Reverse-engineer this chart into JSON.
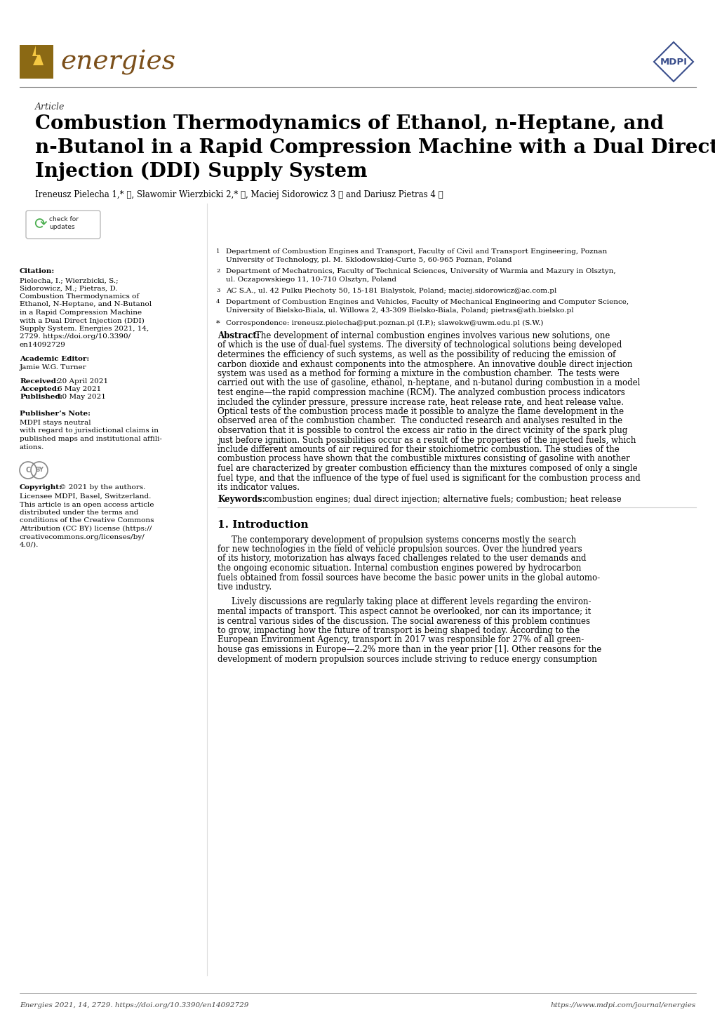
{
  "background_color": "#ffffff",
  "header_line_color": "#888888",
  "footer_line_color": "#888888",
  "logo_bg_color": "#8B6914",
  "logo_bolt_color": "#F5C842",
  "journal_name": "energies",
  "journal_name_color": "#7B4F1A",
  "mdpi_diamond_color": "#3A4E8C",
  "article_label": "Article",
  "title_line1": "Combustion Thermodynamics of Ethanol, n-Heptane, and",
  "title_line2": "n-Butanol in a Rapid Compression Machine with a Dual Direct",
  "title_line3": "Injection (DDI) Supply System",
  "authors": "Ireneusz Pielecha 1,* ⓘ, Sławomir Wierzbicki 2,* ⓘ, Maciej Sidorowicz 3 ⓘ and Dariusz Pietras 4 ⓘ",
  "abstract_bold": "Abstract:",
  "abstract_lines": [
    "The development of internal combustion engines involves various new solutions, one",
    "of which is the use of dual-fuel systems. The diversity of technological solutions being developed",
    "determines the efficiency of such systems, as well as the possibility of reducing the emission of",
    "carbon dioxide and exhaust components into the atmosphere. An innovative double direct injection",
    "system was used as a method for forming a mixture in the combustion chamber.  The tests were",
    "carried out with the use of gasoline, ethanol, n-heptane, and n-butanol during combustion in a model",
    "test engine—the rapid compression machine (RCM). The analyzed combustion process indicators",
    "included the cylinder pressure, pressure increase rate, heat release rate, and heat release value.",
    "Optical tests of the combustion process made it possible to analyze the flame development in the",
    "observed area of the combustion chamber.  The conducted research and analyses resulted in the",
    "observation that it is possible to control the excess air ratio in the direct vicinity of the spark plug",
    "just before ignition. Such possibilities occur as a result of the properties of the injected fuels, which",
    "include different amounts of air required for their stoichiometric combustion. The studies of the",
    "combustion process have shown that the combustible mixtures consisting of gasoline with another",
    "fuel are characterized by greater combustion efficiency than the mixtures composed of only a single",
    "fuel type, and that the influence of the type of fuel used is significant for the combustion process and",
    "its indicator values."
  ],
  "keywords_bold": "Keywords:",
  "keywords_text": " combustion engines; dual direct injection; alternative fuels; combustion; heat release",
  "section1_title": "1. Introduction",
  "p1_lines": [
    "The contemporary development of propulsion systems concerns mostly the search",
    "for new technologies in the field of vehicle propulsion sources. Over the hundred years",
    "of its history, motorization has always faced challenges related to the user demands and",
    "the ongoing economic situation. Internal combustion engines powered by hydrocarbon",
    "fuels obtained from fossil sources have become the basic power units in the global automo-",
    "tive industry."
  ],
  "p2_lines": [
    "Lively discussions are regularly taking place at different levels regarding the environ-",
    "mental impacts of transport. This aspect cannot be overlooked, nor can its importance; it",
    "is central various sides of the discussion. The social awareness of this problem continues",
    "to grow, impacting how the future of transport is being shaped today. According to the",
    "European Environment Agency, transport in 2017 was responsible for 27% of all green-",
    "house gas emissions in Europe—2.2% more than in the year prior [1]. Other reasons for the",
    "development of modern propulsion sources include striving to reduce energy consumption"
  ],
  "citation_lines": [
    "Pielecha, I.; Wierzbicki, S.;",
    "Sidorowicz, M.; Pietras, D.",
    "Combustion Thermodynamics of",
    "Ethanol, N-Heptane, and N-Butanol",
    "in a Rapid Compression Machine",
    "with a Dual Direct Injection (DDI)",
    "Supply System. Energies 2021, 14,",
    "2729. https://doi.org/10.3390/",
    "en14092729"
  ],
  "academic_editor": "Jamie W.G. Turner",
  "received": "20 April 2021",
  "accepted": "6 May 2021",
  "published": "10 May 2021",
  "publisher_note_lines": [
    "MDPI stays neutral",
    "with regard to jurisdictional claims in",
    "published maps and institutional affili-",
    "ations."
  ],
  "copyright_line0_bold": "Copyright:",
  "copyright_line0_rest": " © 2021 by the authors.",
  "copyright_lines": [
    "Licensee MDPI, Basel, Switzerland.",
    "This article is an open access article",
    "distributed under the terms and",
    "conditions of the Creative Commons",
    "Attribution (CC BY) license (https://",
    "creativecommons.org/licenses/by/",
    "4.0/)."
  ],
  "footer_left": "Energies 2021, 14, 2729. https://doi.org/10.3390/en14092729",
  "footer_right": "https://www.mdpi.com/journal/energies"
}
